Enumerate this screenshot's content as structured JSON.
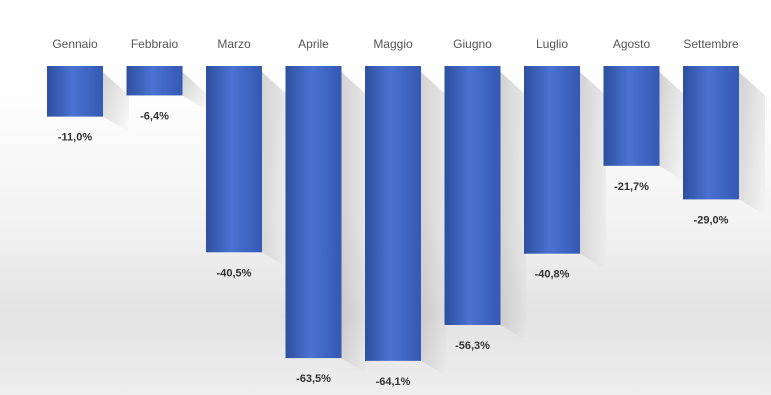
{
  "chart_data": {
    "type": "bar",
    "title": "",
    "xlabel": "",
    "ylabel": "",
    "categories": [
      "Gennaio",
      "Febbraio",
      "Marzo",
      "Aprile",
      "Maggio",
      "Giugno",
      "Luglio",
      "Agosto",
      "Settembre"
    ],
    "values": [
      -11.0,
      -6.4,
      -40.5,
      -63.5,
      -64.1,
      -56.3,
      -40.8,
      -21.7,
      -29.0
    ],
    "value_labels": [
      "-11,0%",
      "-6,4%",
      "-40,5%",
      "-63,5%",
      "-64,1%",
      "-56,3%",
      "-40,8%",
      "-21,7%",
      "-29,0%"
    ],
    "ylim": [
      -65,
      0
    ],
    "grid": false,
    "legend": "none",
    "bar_color": "#3d63c0",
    "bar_color_light": "#4a72d0",
    "bar_color_dark": "#2e4f9e"
  }
}
